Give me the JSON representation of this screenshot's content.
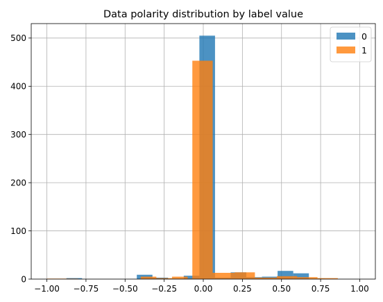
{
  "chart_data": {
    "type": "bar",
    "title": "Data polarity distribution by label value",
    "xlabel": "",
    "ylabel": "",
    "xlim": [
      -1.1,
      1.1
    ],
    "ylim": [
      0,
      530
    ],
    "xticks": [
      -1.0,
      -0.75,
      -0.5,
      -0.25,
      0.0,
      0.25,
      0.5,
      0.75,
      1.0
    ],
    "xtick_labels": [
      "−1.00",
      "−0.75",
      "−0.50",
      "−0.25",
      "0.00",
      "0.25",
      "0.50",
      "0.75",
      "1.00"
    ],
    "yticks": [
      0,
      100,
      200,
      300,
      400,
      500
    ],
    "ytick_labels": [
      "0",
      "100",
      "200",
      "300",
      "400",
      "500"
    ],
    "grid": true,
    "legend_position": "top-right",
    "series": [
      {
        "name": "0",
        "color": "#1f77b4",
        "opacity": 0.8,
        "bins": [
          {
            "x0": -0.875,
            "x1": -0.775,
            "value": 2
          },
          {
            "x0": -0.425,
            "x1": -0.325,
            "value": 9
          },
          {
            "x0": -0.325,
            "x1": -0.225,
            "value": 3
          },
          {
            "x0": -0.225,
            "x1": -0.125,
            "value": 1
          },
          {
            "x0": -0.125,
            "x1": -0.025,
            "value": 7
          },
          {
            "x0": -0.025,
            "x1": 0.075,
            "value": 505
          },
          {
            "x0": 0.075,
            "x1": 0.175,
            "value": 3
          },
          {
            "x0": 0.175,
            "x1": 0.275,
            "value": 14
          },
          {
            "x0": 0.275,
            "x1": 0.375,
            "value": 4
          },
          {
            "x0": 0.375,
            "x1": 0.475,
            "value": 5
          },
          {
            "x0": 0.475,
            "x1": 0.575,
            "value": 17
          },
          {
            "x0": 0.575,
            "x1": 0.675,
            "value": 12
          },
          {
            "x0": 0.675,
            "x1": 0.775,
            "value": 1
          }
        ]
      },
      {
        "name": "1",
        "color": "#ff7f0e",
        "opacity": 0.8,
        "bins": [
          {
            "x0": -1.0,
            "x1": -0.9,
            "value": 1
          },
          {
            "x0": -0.9,
            "x1": -0.8,
            "value": 1
          },
          {
            "x0": -0.4,
            "x1": -0.3,
            "value": 5
          },
          {
            "x0": -0.3,
            "x1": -0.2,
            "value": 2
          },
          {
            "x0": -0.2,
            "x1": -0.1,
            "value": 5
          },
          {
            "x0": -0.1,
            "x1": -0.07,
            "value": 1
          },
          {
            "x0": -0.07,
            "x1": 0.06,
            "value": 453
          },
          {
            "x0": 0.06,
            "x1": 0.2,
            "value": 13
          },
          {
            "x0": 0.2,
            "x1": 0.33,
            "value": 14
          },
          {
            "x0": 0.33,
            "x1": 0.47,
            "value": 3
          },
          {
            "x0": 0.47,
            "x1": 0.6,
            "value": 6
          },
          {
            "x0": 0.6,
            "x1": 0.73,
            "value": 4
          },
          {
            "x0": 0.73,
            "x1": 0.86,
            "value": 2
          }
        ]
      }
    ]
  }
}
